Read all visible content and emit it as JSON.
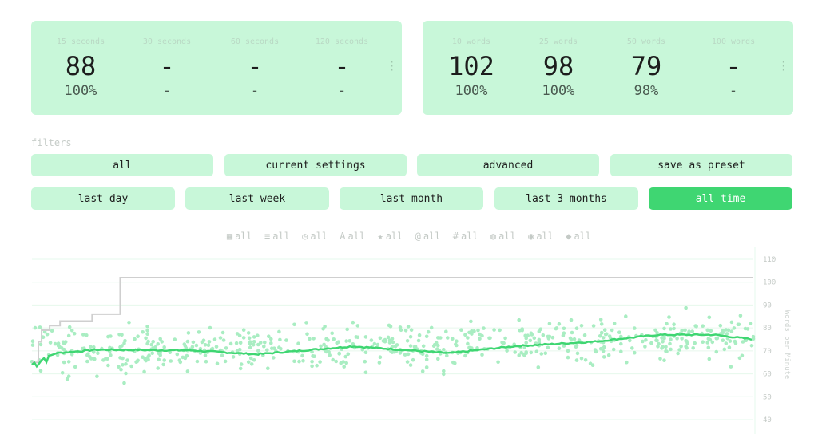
{
  "personal_bests_time": [
    {
      "label": "15 seconds",
      "wpm": "88",
      "acc": "100%"
    },
    {
      "label": "30 seconds",
      "wpm": "-",
      "acc": "-"
    },
    {
      "label": "60 seconds",
      "wpm": "-",
      "acc": "-"
    },
    {
      "label": "120 seconds",
      "wpm": "-",
      "acc": "-"
    }
  ],
  "personal_bests_words": [
    {
      "label": "10 words",
      "wpm": "102",
      "acc": "100%"
    },
    {
      "label": "25 words",
      "wpm": "98",
      "acc": "100%"
    },
    {
      "label": "50 words",
      "wpm": "79",
      "acc": "98%"
    },
    {
      "label": "100 words",
      "wpm": "-",
      "acc": "-"
    }
  ],
  "filters": {
    "title": "filters",
    "presets": [
      "all",
      "current settings",
      "advanced",
      "save as preset"
    ],
    "date_ranges": [
      "last day",
      "last week",
      "last month",
      "last 3 months",
      "all time"
    ],
    "active_date_range": "all time",
    "quick": [
      {
        "icon": "calendar-icon",
        "glyph": "▦",
        "label": "all"
      },
      {
        "icon": "list-icon",
        "glyph": "≡",
        "label": "all"
      },
      {
        "icon": "clock-icon",
        "glyph": "◷",
        "label": "all"
      },
      {
        "icon": "font-icon",
        "glyph": "A",
        "label": "all"
      },
      {
        "icon": "star-icon",
        "glyph": "★",
        "label": "all"
      },
      {
        "icon": "at-icon",
        "glyph": "@",
        "label": "all"
      },
      {
        "icon": "hashtag-icon",
        "glyph": "#",
        "label": "all"
      },
      {
        "icon": "globe-icon",
        "glyph": "◍",
        "label": "all"
      },
      {
        "icon": "gamepad-icon",
        "glyph": "◉",
        "label": "all"
      },
      {
        "icon": "tag-icon",
        "glyph": "◆",
        "label": "all"
      }
    ]
  },
  "colors": {
    "accent": "#3fd672",
    "card": "#c8f7d9",
    "scatter": "#a9edc2",
    "pb_line": "#cfcfcf",
    "avg_line": "#3fd672"
  },
  "chart_data": {
    "type": "scatter",
    "ylabel": "Words per Minute",
    "ylim": [
      37,
      112
    ],
    "y_ticks": [
      40,
      50,
      60,
      70,
      80,
      90,
      100,
      110
    ],
    "x_count": 900,
    "grid": true,
    "series": [
      {
        "kind": "points",
        "mean_start": 69,
        "mean_end": 76,
        "spread": 9
      },
      {
        "kind": "pb_steps",
        "steps": [
          [
            0,
            65
          ],
          [
            8,
            74
          ],
          [
            12,
            79
          ],
          [
            22,
            81
          ],
          [
            35,
            83
          ],
          [
            75,
            86
          ],
          [
            110,
            102
          ],
          [
            899,
            102
          ]
        ]
      },
      {
        "kind": "average",
        "points": [
          [
            0,
            64
          ],
          [
            10,
            66
          ],
          [
            30,
            69
          ],
          [
            80,
            70.5
          ],
          [
            200,
            70.2
          ],
          [
            280,
            68.5
          ],
          [
            400,
            72
          ],
          [
            520,
            69
          ],
          [
            600,
            72
          ],
          [
            700,
            74
          ],
          [
            780,
            77
          ],
          [
            850,
            77
          ],
          [
            899,
            75
          ]
        ]
      }
    ]
  }
}
